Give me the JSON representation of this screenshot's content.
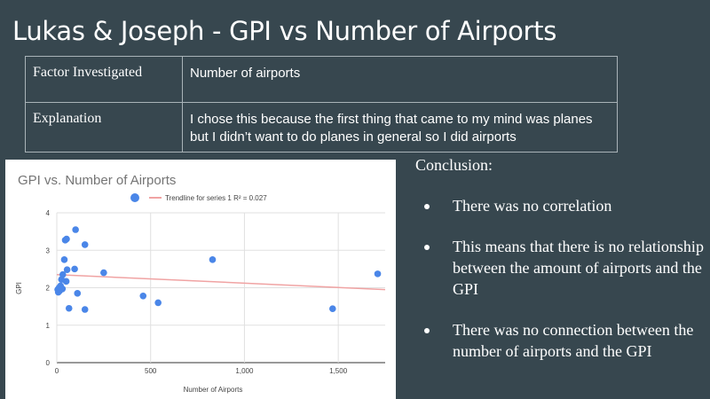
{
  "slide": {
    "title": "Lukas & Joseph - GPI vs Number of Airports"
  },
  "info_table": {
    "rows": [
      {
        "key": "Factor Investigated",
        "value": "Number of airports"
      },
      {
        "key": "Explanation",
        "value": "I chose this because the first thing that came to my mind was planes but I didn’t want to do planes in general so I did airports"
      }
    ]
  },
  "conclusion": {
    "title": "Conclusion:",
    "bullets": [
      "There was no correlation",
      "This means that there is no relationship between the amount of airports and the GPI",
      "There was no connection between the number of airports and the GPI"
    ]
  },
  "colors": {
    "background": "#37474f",
    "point": "#4a86e8",
    "trendline": "#f0a3a3"
  },
  "chart_data": {
    "type": "scatter",
    "title": "GPI vs. Number of Airports",
    "xlabel": "Number of Airports",
    "ylabel": "GPI",
    "xlim": [
      0,
      1750
    ],
    "ylim": [
      0,
      4
    ],
    "x_ticks": [
      0,
      500,
      1000,
      1500
    ],
    "x_tick_labels": [
      "0",
      "500",
      "1,000",
      "1,500"
    ],
    "y_ticks": [
      0,
      1,
      2,
      3,
      4
    ],
    "y_tick_labels": [
      "0",
      "1",
      "2",
      "3",
      "4"
    ],
    "grid": true,
    "legend_position": "top",
    "legend": {
      "series_label": "",
      "trendline_label": "Trendline for series 1 R² = 0.027"
    },
    "points": [
      {
        "x": 5,
        "y": 1.95
      },
      {
        "x": 8,
        "y": 1.88
      },
      {
        "x": 12,
        "y": 2.0
      },
      {
        "x": 15,
        "y": 1.92
      },
      {
        "x": 20,
        "y": 2.05
      },
      {
        "x": 25,
        "y": 2.22
      },
      {
        "x": 30,
        "y": 1.97
      },
      {
        "x": 32,
        "y": 2.35
      },
      {
        "x": 40,
        "y": 2.75
      },
      {
        "x": 45,
        "y": 3.27
      },
      {
        "x": 50,
        "y": 2.17
      },
      {
        "x": 52,
        "y": 3.3
      },
      {
        "x": 55,
        "y": 2.48
      },
      {
        "x": 65,
        "y": 1.45
      },
      {
        "x": 95,
        "y": 2.5
      },
      {
        "x": 100,
        "y": 3.55
      },
      {
        "x": 110,
        "y": 1.85
      },
      {
        "x": 150,
        "y": 3.15
      },
      {
        "x": 150,
        "y": 1.42
      },
      {
        "x": 250,
        "y": 2.4
      },
      {
        "x": 460,
        "y": 1.78
      },
      {
        "x": 540,
        "y": 1.6
      },
      {
        "x": 830,
        "y": 2.75
      },
      {
        "x": 1470,
        "y": 1.44
      },
      {
        "x": 1710,
        "y": 2.37
      }
    ],
    "trendline": {
      "x": [
        0,
        1750
      ],
      "y": [
        2.35,
        1.95
      ]
    }
  }
}
